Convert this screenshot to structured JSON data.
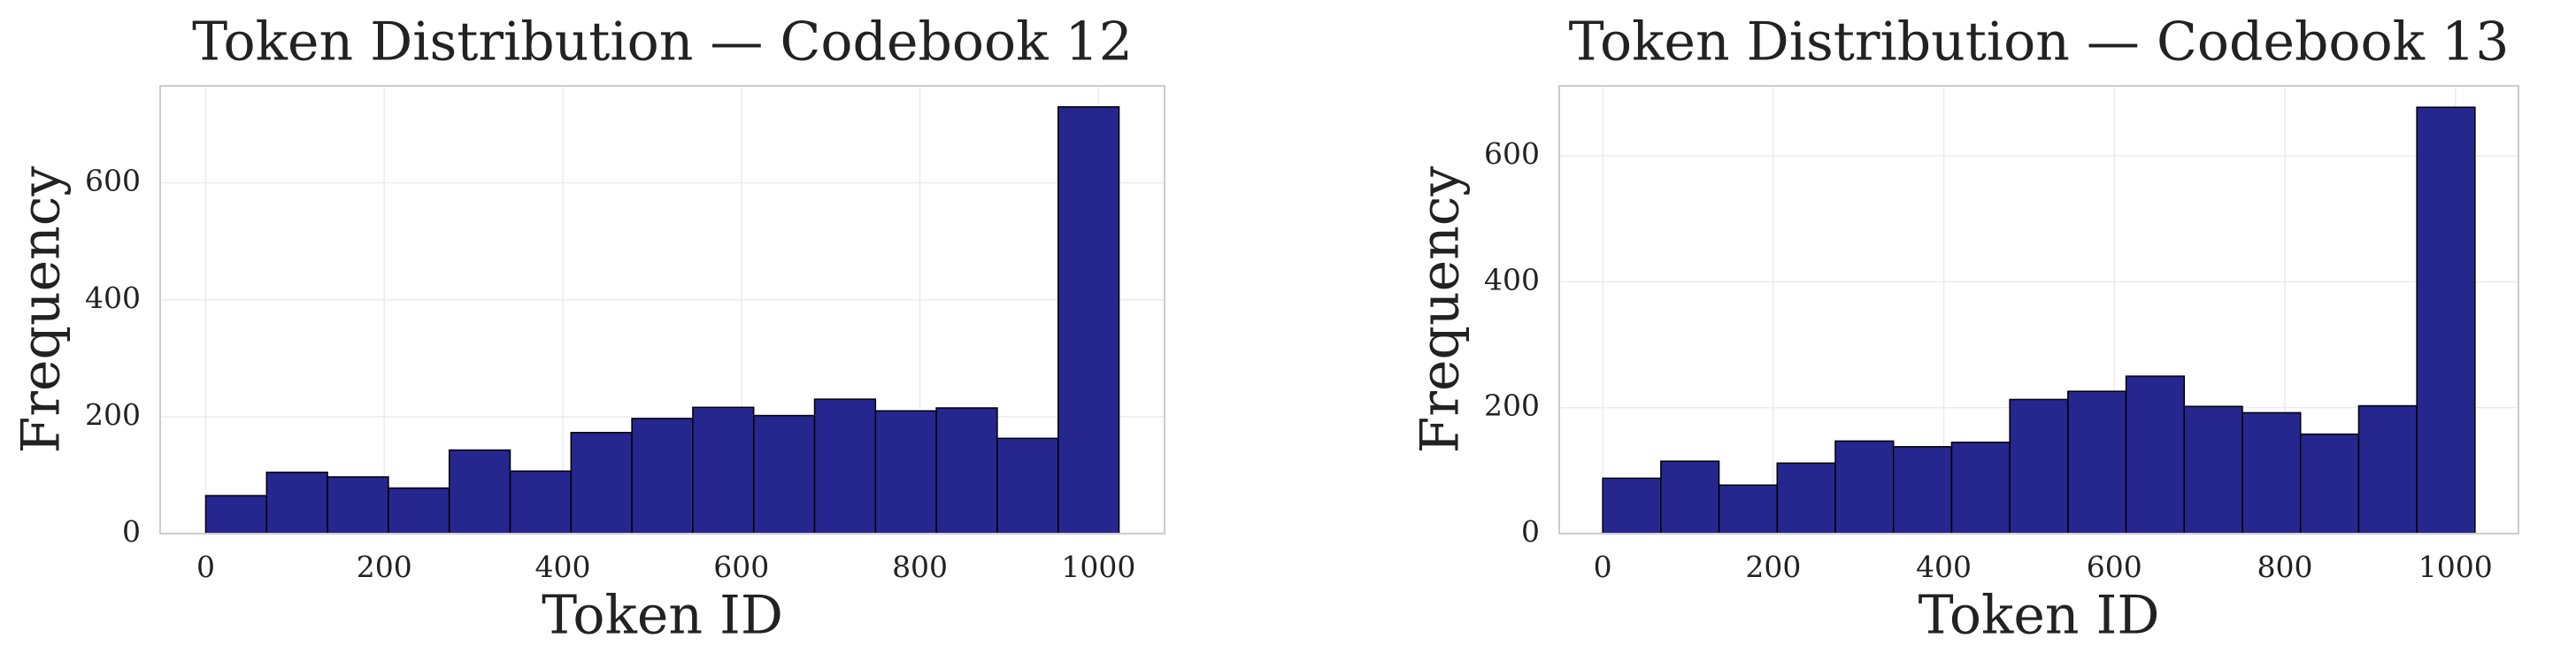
{
  "chart_data": [
    {
      "type": "histogram",
      "title": "Token Distribution — Codebook 12",
      "xlabel": "Token ID",
      "ylabel": "Frequency",
      "bins": [
        0,
        68.2,
        136.4,
        204.6,
        272.8,
        341,
        409.2,
        477.4,
        545.6,
        613.8,
        682,
        750.2,
        818.4,
        886.6,
        954.8,
        1023
      ],
      "values": [
        65,
        105,
        97,
        78,
        143,
        107,
        173,
        197,
        216,
        202,
        230,
        210,
        215,
        163,
        730
      ],
      "color": "#26268f",
      "xlim": [
        -51,
        1074
      ],
      "ylim": [
        0,
        766
      ],
      "xticks": [
        0,
        200,
        400,
        600,
        800,
        1000
      ],
      "yticks": [
        0,
        200,
        400,
        600
      ],
      "grid": true
    },
    {
      "type": "histogram",
      "title": "Token Distribution — Codebook 13",
      "xlabel": "Token ID",
      "ylabel": "Frequency",
      "bins": [
        0,
        68.2,
        136.4,
        204.6,
        272.8,
        341,
        409.2,
        477.4,
        545.6,
        613.8,
        682,
        750.2,
        818.4,
        886.6,
        954.8,
        1023
      ],
      "values": [
        88,
        115,
        77,
        112,
        147,
        138,
        145,
        213,
        226,
        250,
        202,
        192,
        158,
        203,
        677
      ],
      "color": "#26268f",
      "xlim": [
        -51,
        1074
      ],
      "ylim": [
        0,
        711
      ],
      "xticks": [
        0,
        200,
        400,
        600,
        800,
        1000
      ],
      "yticks": [
        0,
        200,
        400,
        600
      ],
      "grid": true
    }
  ]
}
